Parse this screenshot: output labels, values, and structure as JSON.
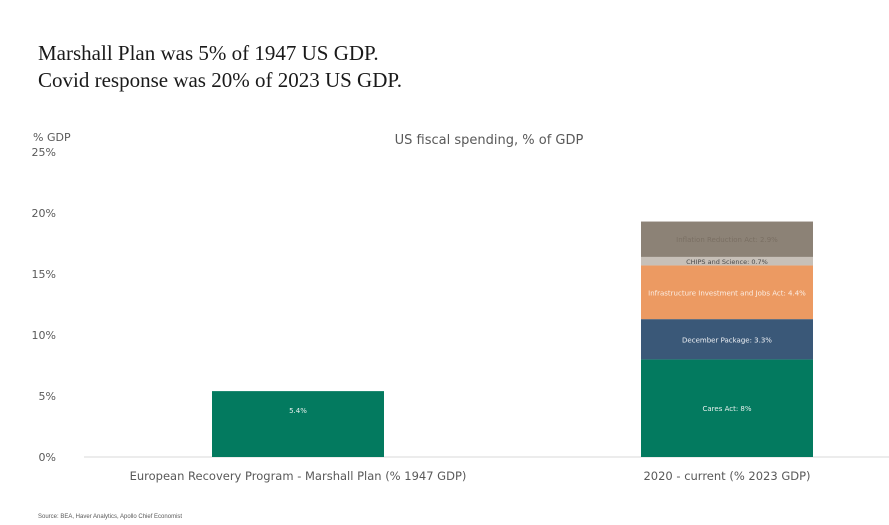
{
  "headline": {
    "line1": "Marshall Plan was 5% of 1947 US GDP.",
    "line2": "Covid response was 20% of 2023 US GDP."
  },
  "source": "Source: BEA, Haver Analytics, Apollo Chief Economist",
  "chart_data": {
    "type": "bar",
    "stacked": true,
    "title": "US fiscal spending, % of GDP",
    "ylabel": "% GDP",
    "xlabel": "",
    "ylim": [
      0,
      25
    ],
    "yticks": [
      0,
      5,
      10,
      15,
      20,
      25
    ],
    "ytick_labels": [
      "0%",
      "5%",
      "10%",
      "15%",
      "20%",
      "25%"
    ],
    "grid": false,
    "legend": "none",
    "categories": [
      "European Recovery Program - Marshall Plan (% 1947 GDP)",
      "2020 - current (% 2023 GDP)"
    ],
    "series": [
      {
        "name": "Marshall Plan",
        "color": "#037a5f",
        "text_color": "#e8f1ee",
        "values": [
          5.4,
          null
        ],
        "labels": [
          "5.4%",
          null
        ]
      },
      {
        "name": "Cares Act",
        "color": "#037a5f",
        "text_color": "#e8f1ee",
        "values": [
          null,
          8.0
        ],
        "labels": [
          null,
          "Cares Act: 8%"
        ]
      },
      {
        "name": "December Package",
        "color": "#3a5878",
        "text_color": "#eef1f5",
        "values": [
          null,
          3.3
        ],
        "labels": [
          null,
          "December Package: 3.3%"
        ]
      },
      {
        "name": "Infrastructure Investment and Jobs Act",
        "color": "#ec9a62",
        "text_color": "#fbeee4",
        "values": [
          null,
          4.4
        ],
        "labels": [
          null,
          "Infrastructure Investment and Jobs Act: 4.4%"
        ]
      },
      {
        "name": "CHIPS and Science",
        "color": "#c7c0b8",
        "text_color": "#4a4a4a",
        "values": [
          null,
          0.7
        ],
        "labels": [
          null,
          "CHIPS and Science: 0.7%"
        ]
      },
      {
        "name": "Inflation Reduction Act",
        "color": "#8c8276",
        "text_color": "#7a6f63",
        "values": [
          null,
          2.9
        ],
        "labels": [
          null,
          "Inflation Reduction Act: 2.9%"
        ]
      }
    ]
  }
}
